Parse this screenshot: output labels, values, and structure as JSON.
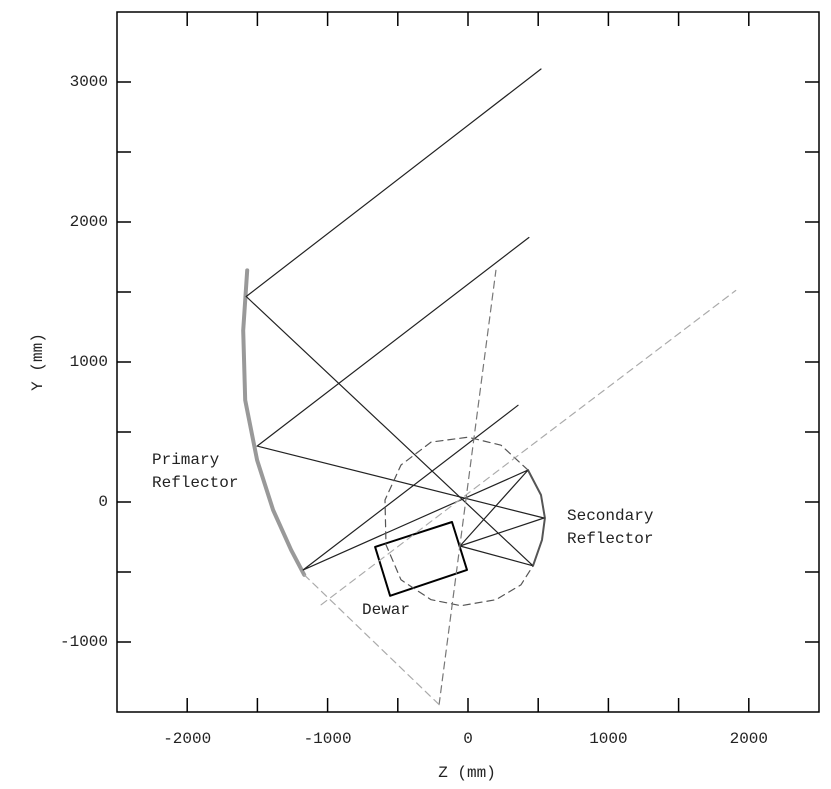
{
  "chart_data": {
    "type": "line",
    "xlabel": "Z (mm)",
    "ylabel": "Y (mm)",
    "xlim": [
      -2500,
      2500
    ],
    "ylim": [
      -1500,
      3500
    ],
    "xticks": [
      -2000,
      -1000,
      0,
      1000,
      2000
    ],
    "yticks": [
      -1000,
      0,
      1000,
      2000,
      3000
    ],
    "xminorticks": [
      -1500,
      -500,
      500,
      1500
    ],
    "yminorticks": [
      -500,
      500,
      1500,
      2500
    ],
    "annotations": [
      [
        "Primary",
        "Reflector"
      ],
      [
        "Secondary",
        "Reflector"
      ],
      [
        "Dewar"
      ]
    ],
    "series": [
      {
        "color": "#999999",
        "style": "thick",
        "x": [
          -1573,
          -1601,
          -1587,
          -1502,
          -1388,
          -1260,
          -1167
        ],
        "y": [
          1654,
          1226,
          727,
          299,
          -57,
          -342,
          -520
        ]
      },
      {
        "color": "#555555",
        "style": "medium",
        "x": [
          427,
          520,
          548,
          527,
          463
        ],
        "y": [
          228,
          50,
          -114,
          -271,
          -456
        ]
      },
      {
        "color": "#222222",
        "style": "solid",
        "x": [
          520,
          -1580,
          463,
          -57
        ],
        "y": [
          3093,
          1468,
          -456,
          -314
        ]
      },
      {
        "color": "#222222",
        "style": "solid",
        "x": [
          434,
          -1502,
          541,
          -57
        ],
        "y": [
          1889,
          399,
          -114,
          -314
        ]
      },
      {
        "color": "#222222",
        "style": "solid",
        "x": [
          356,
          -1174,
          427,
          -57
        ],
        "y": [
          691,
          -485,
          228,
          -314
        ]
      },
      {
        "color": "#000000",
        "style": "medium",
        "x": [
          -662,
          -114,
          -7,
          -555,
          -662
        ],
        "y": [
          -321,
          -143,
          -485,
          -670,
          -321
        ]
      },
      {
        "color": "#555555",
        "style": "dashed",
        "x": [
          427,
          235,
          0,
          -263,
          -477,
          -591,
          -584,
          -477,
          -263,
          -50,
          199,
          377,
          463
        ],
        "y": [
          228,
          406,
          463,
          428,
          264,
          14,
          -306,
          -556,
          -698,
          -741,
          -698,
          -592,
          -456
        ]
      },
      {
        "color": "#aaaaaa",
        "style": "dashed",
        "x": [
          -1046,
          1907
        ],
        "y": [
          -734,
          1511
        ]
      },
      {
        "color": "#777777",
        "style": "dashed",
        "x": [
          -206,
          199
        ],
        "y": [
          -1447,
          1654
        ]
      },
      {
        "color": "#aaaaaa",
        "style": "dashed",
        "x": [
          -1167,
          -206
        ],
        "y": [
          -520,
          -1447
        ]
      }
    ]
  }
}
